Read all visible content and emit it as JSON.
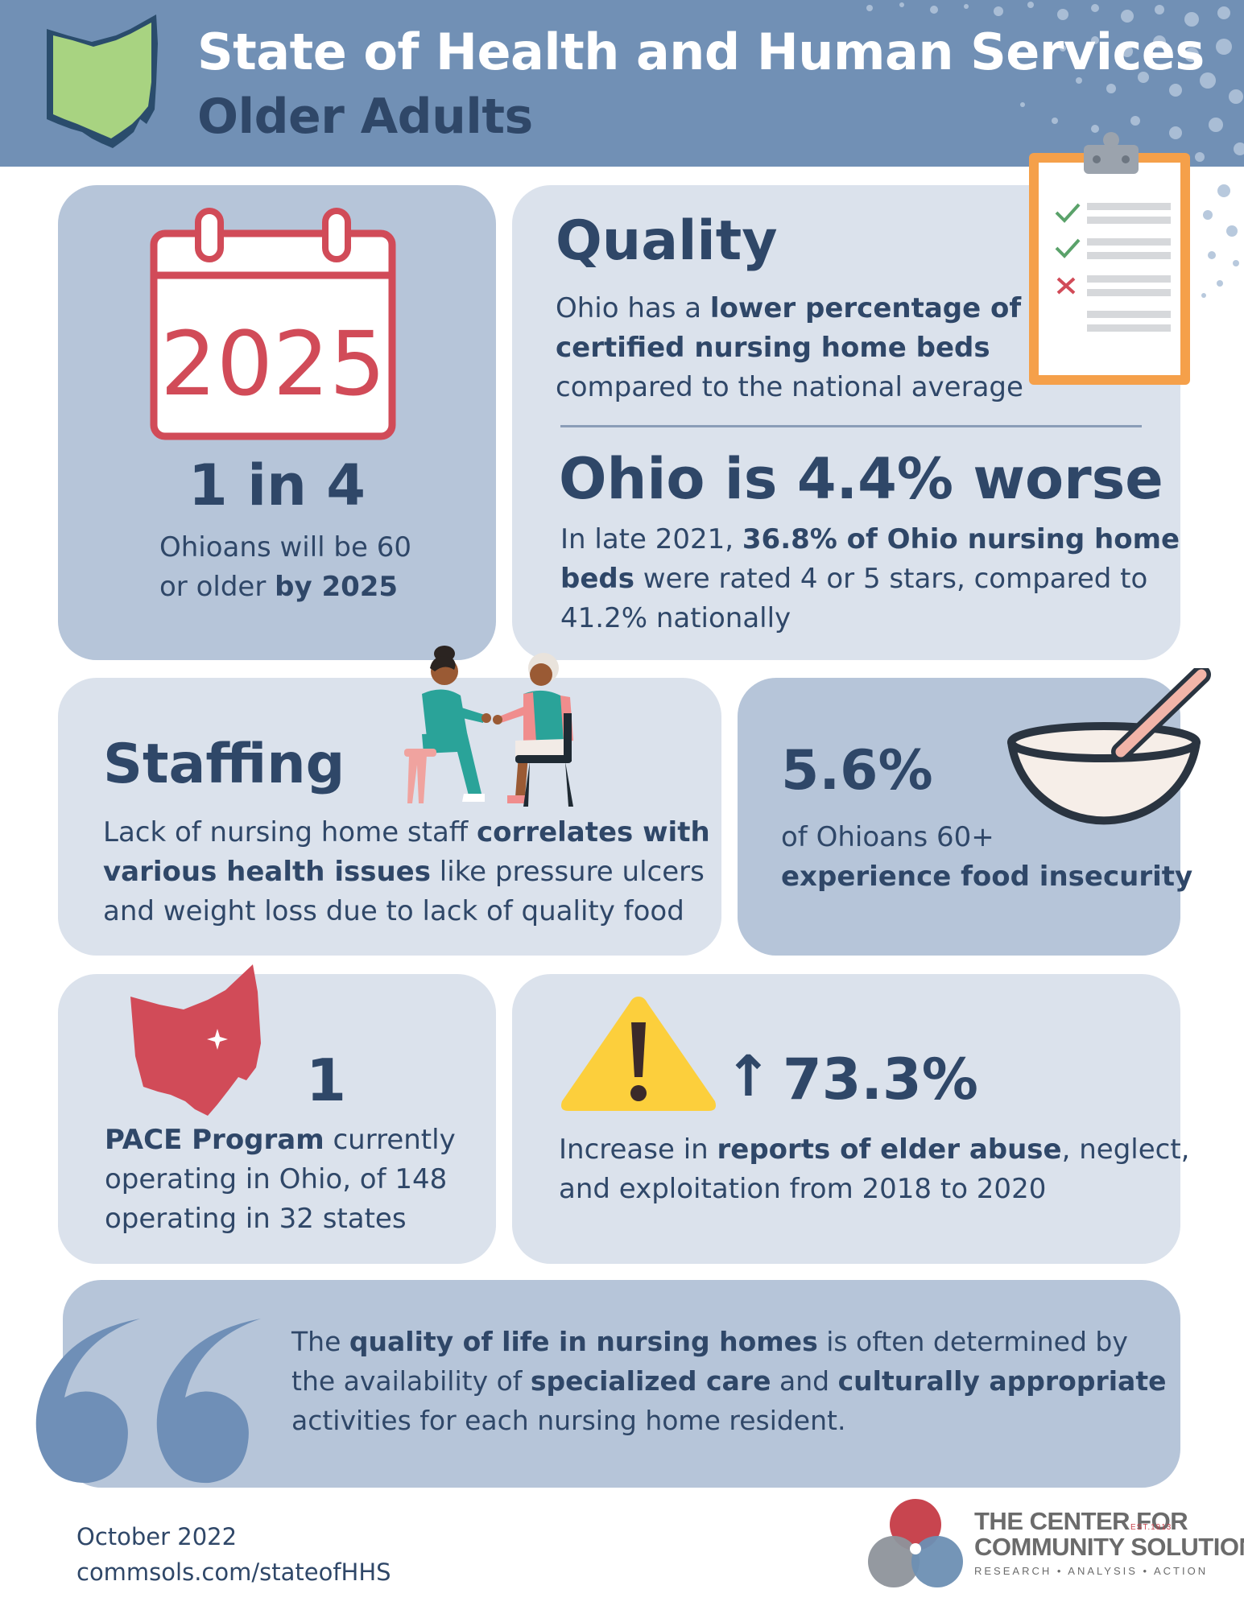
{
  "header": {
    "title": "State of Health and Human Services",
    "subtitle": "Older Adults"
  },
  "calendar_card": {
    "calendar_year": "2025",
    "stat": "1 in 4",
    "text_line1": "Ohioans will be 60",
    "text_line2_plain": "or older ",
    "text_line2_bold": "by 2025"
  },
  "quality_card": {
    "heading": "Quality",
    "line1_plain": "Ohio has a ",
    "line1_bold": "lower percentage of",
    "line2_bold": "certified nursing home beds",
    "line3_plain": "compared to the national average",
    "stat": "Ohio is 4.4% worse",
    "detail_plain1": "In late 2021, ",
    "detail_bold1": "36.8% of Ohio nursing home",
    "detail_bold2": "beds",
    "detail_plain2": " were rated 4 or 5 stars, compared to",
    "detail_plain3": "41.2% nationally"
  },
  "staffing_card": {
    "heading": "Staffing",
    "line1_plain": "Lack of nursing home staff ",
    "line1_bold": "correlates with",
    "line2_bold": "various health issues",
    "line2_plain": " like pressure ulcers",
    "line3_plain": "and weight loss due to lack of quality food"
  },
  "food_card": {
    "stat": "5.6%",
    "line1": "of Ohioans 60+",
    "line2_bold": "experience food insecurity"
  },
  "pace_card": {
    "stat": "1",
    "line1_bold": "PACE Program",
    "line1_plain": " currently",
    "line2": "operating in Ohio, of 148",
    "line3": "operating in 32 states"
  },
  "abuse_card": {
    "arrow": "↑",
    "stat": "73.3%",
    "line1_plain": "Increase in ",
    "line1_bold": "reports of elder abuse",
    "line1_plain2": ", neglect,",
    "line2": "and exploitation from 2018 to 2020"
  },
  "quote_card": {
    "line1_plain": "The ",
    "line1_bold": "quality of life in nursing homes",
    "line1_plain2": " is often determined by",
    "line2_plain": "the availability of ",
    "line2_bold": "specialized care",
    "line2_plain2": " and ",
    "line2_bold2": "culturally appropriate",
    "line3_plain": "activities for each nursing home resident."
  },
  "footer": {
    "date": "October 2022",
    "url": "commsols.com/stateofHHS"
  },
  "logo": {
    "line1": "THE CENTER FOR",
    "line2": "COMMUNITY SOLUTIONS",
    "est": "EST.1913",
    "tagline": "RESEARCH • ANALYSIS • ACTION"
  },
  "colors": {
    "header_blue": "#7190b5",
    "navy_text": "#2f4768",
    "card_light": "#dbe2ec",
    "card_mid": "#b6c5d9",
    "accent_red": "#d14b58",
    "ohio_green": "#a8d381",
    "clipboard_orange": "#f5a04a",
    "warning_yellow": "#fccf3c"
  },
  "icons": [
    "ohio-outline-icon",
    "calendar-icon",
    "clipboard-checklist-icon",
    "caregiver-illustration",
    "bowl-icon",
    "ohio-map-icon",
    "warning-icon",
    "quote-icon"
  ]
}
